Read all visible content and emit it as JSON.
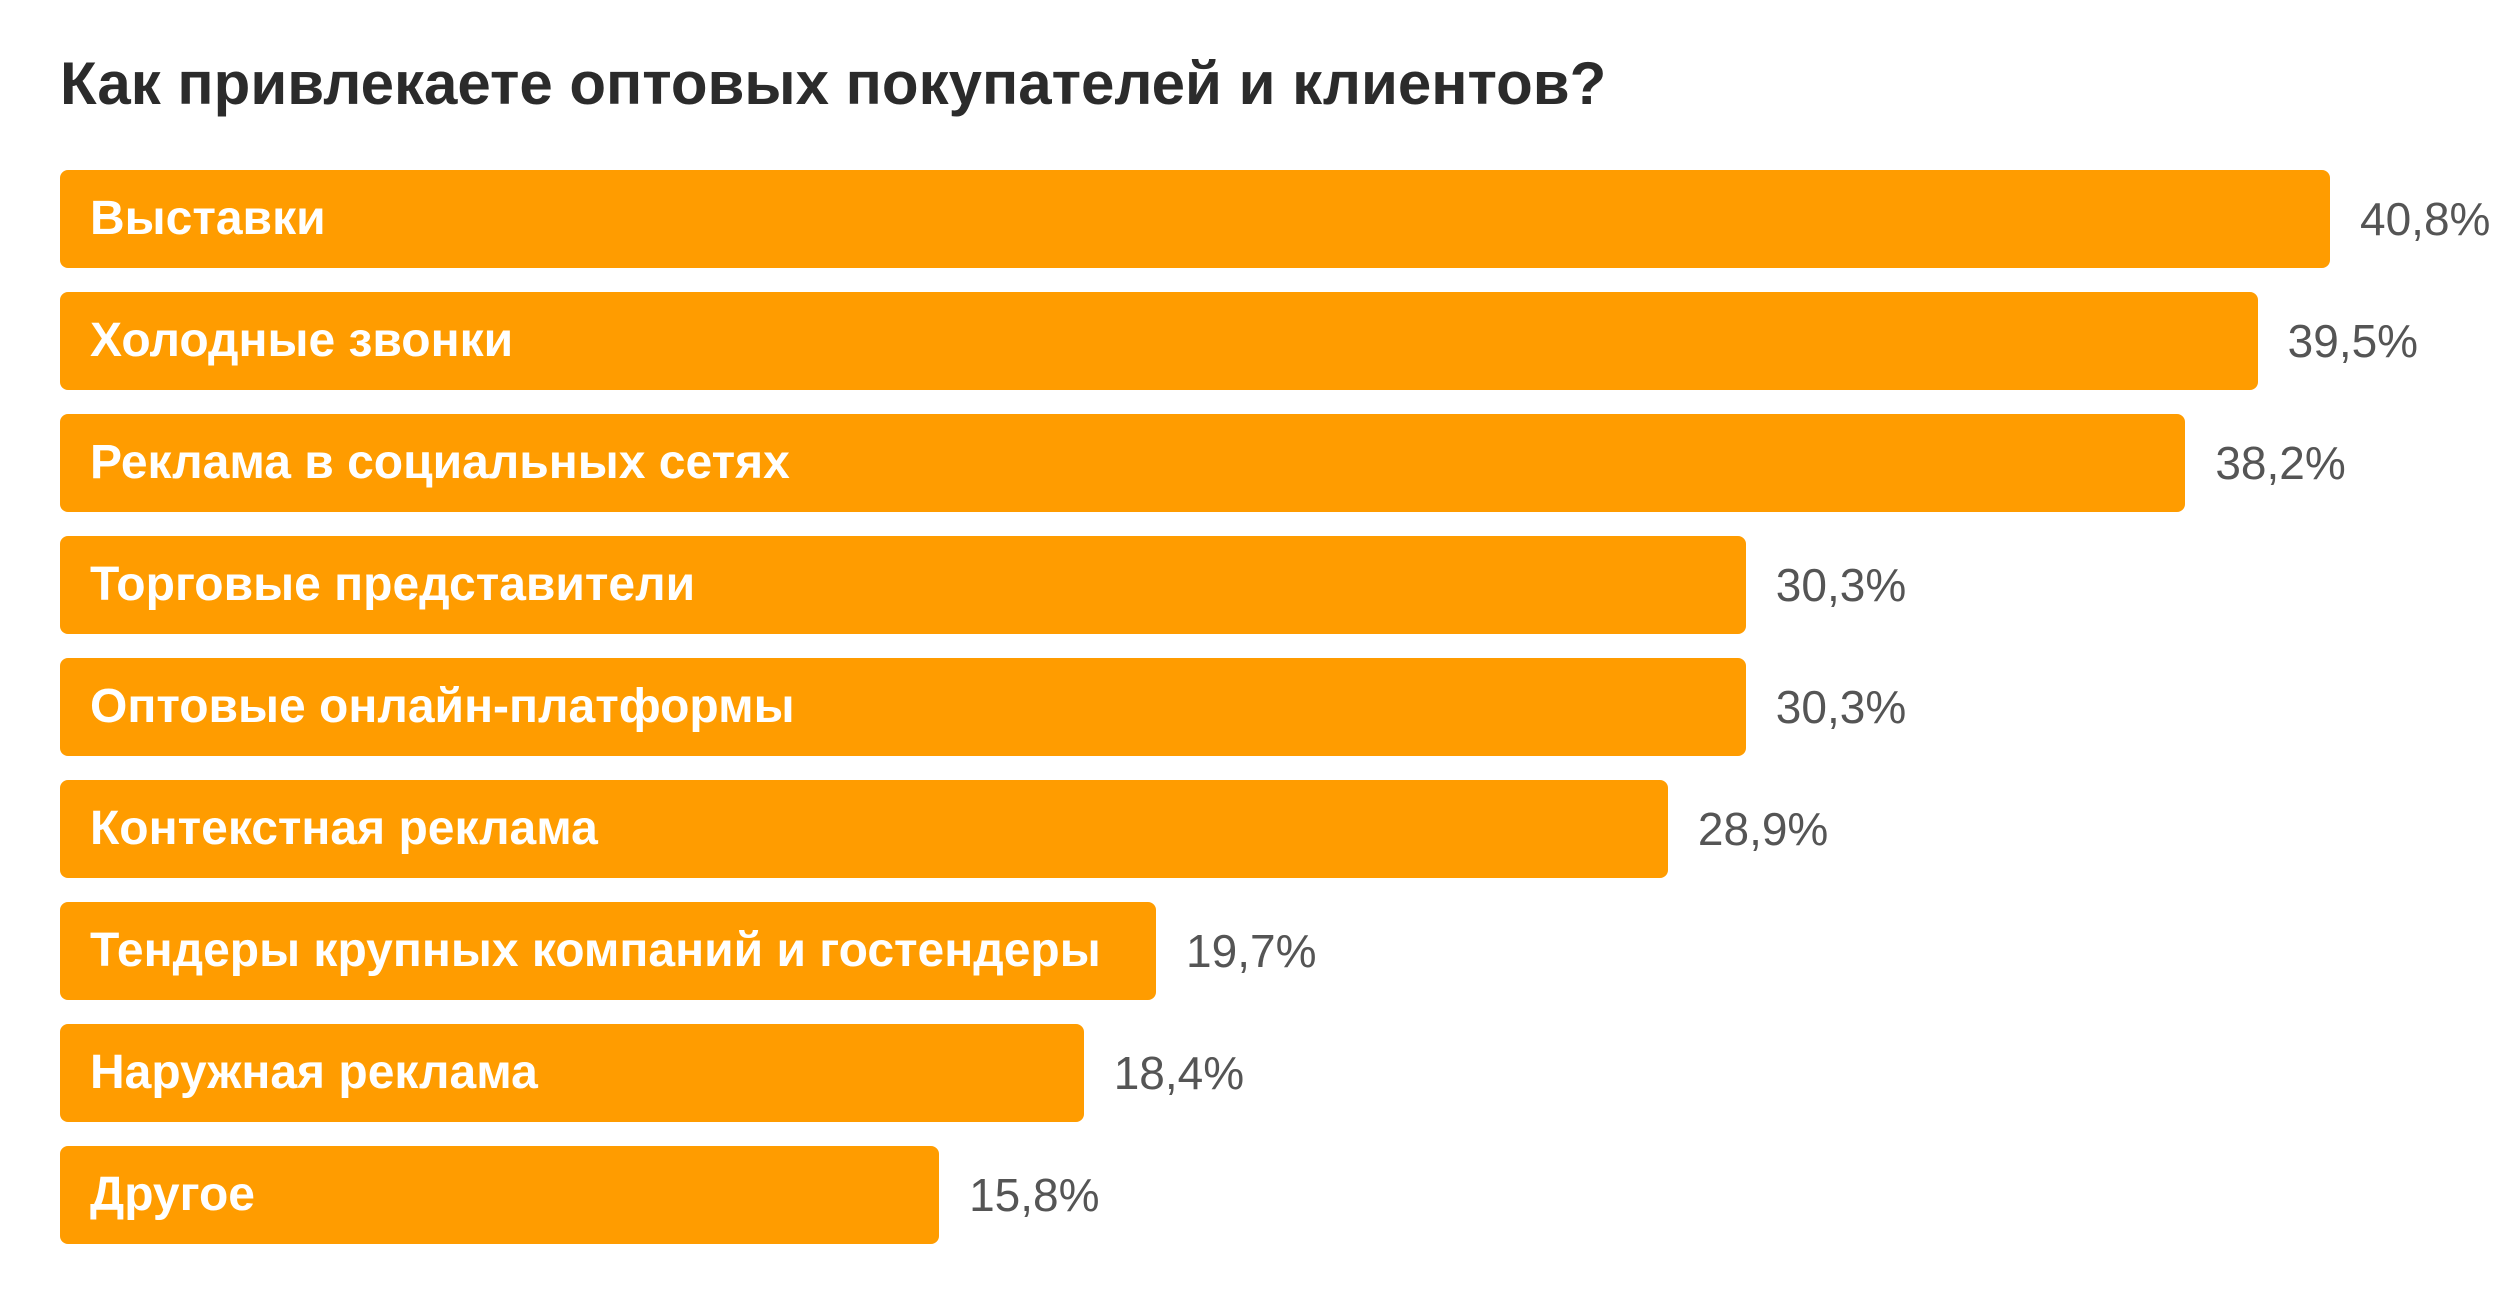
{
  "chart_data": {
    "type": "bar",
    "orientation": "horizontal",
    "title": "Как привлекаете оптовых покупателей и клиентов?",
    "categories": [
      "Выставки",
      "Холодные звонки",
      "Реклама в социальных сетях",
      "Торговые представители",
      "Оптовые онлайн-платформы",
      "Контекстная реклама",
      "Тендеры крупных компаний и гостендеры",
      "Наружная реклама",
      "Другое"
    ],
    "values": [
      40.8,
      39.5,
      38.2,
      30.3,
      30.3,
      28.9,
      19.7,
      18.4,
      15.8
    ],
    "value_labels": [
      "40,8%",
      "39,5%",
      "38,2%",
      "30,3%",
      "30,3%",
      "28,9%",
      "19,7%",
      "18,4%",
      "15,8%"
    ],
    "unit": "%",
    "bar_color": "#ff9c00",
    "legend": "none",
    "grid": false
  }
}
